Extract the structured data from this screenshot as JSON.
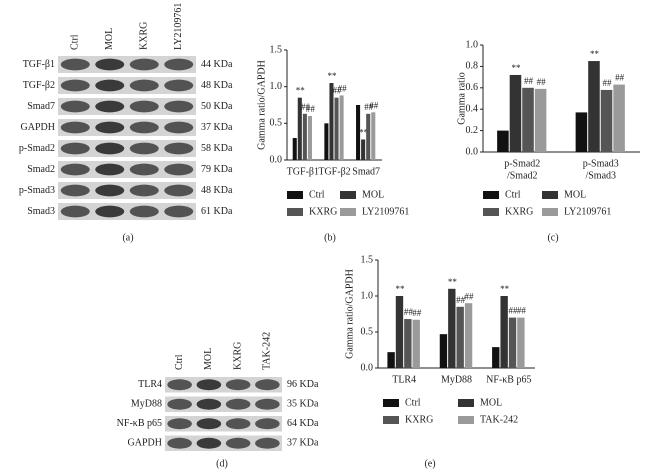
{
  "blots": [
    {
      "lanes": [
        "Ctrl",
        "MOL",
        "KXRG",
        "LY2109761"
      ],
      "rows": [
        {
          "name": "TGF-β1",
          "size": "44 KDa"
        },
        {
          "name": "TGF-β2",
          "size": "48 KDa"
        },
        {
          "name": "Smad7",
          "size": "50 KDa"
        },
        {
          "name": "GAPDH",
          "size": "37 KDa"
        },
        {
          "name": "p-Smad2",
          "size": "58 KDa"
        },
        {
          "name": "Smad2",
          "size": "79 KDa"
        },
        {
          "name": "p-Smad3",
          "size": "48 KDa"
        },
        {
          "name": "Smad3",
          "size": "61 KDa"
        }
      ],
      "caption": "(a)"
    },
    {
      "lanes": [
        "Ctrl",
        "MOL",
        "KXRG",
        "TAK-242"
      ],
      "rows": [
        {
          "name": "TLR4",
          "size": "96 KDa"
        },
        {
          "name": "MyD88",
          "size": "35 KDa"
        },
        {
          "name": "NF-κB p65",
          "size": "64 KDa"
        },
        {
          "name": "GAPDH",
          "size": "37 KDa"
        }
      ],
      "caption": "(d)"
    }
  ],
  "chart_data": [
    {
      "type": "bar",
      "y_label": "Gamma ratio/GAPDH",
      "caption": "(b)",
      "categories": [
        [
          "TGF-β1"
        ],
        [
          "TGF-β2"
        ],
        [
          "Smad7"
        ]
      ],
      "ylim": [
        0,
        1.5
      ],
      "yticks": [
        {
          "value": 0,
          "label": "0.0"
        },
        {
          "value": 0.5,
          "label": "0.5"
        },
        {
          "value": 1,
          "label": "1.0"
        },
        {
          "value": 1.5,
          "label": "1.5"
        }
      ],
      "series": [
        {
          "name": "Ctrl",
          "color": "#111111",
          "values": [
            0.3,
            0.5,
            0.75
          ],
          "annotations": [
            null,
            null,
            null
          ]
        },
        {
          "name": "MOL",
          "color": "#333333",
          "values": [
            0.85,
            1.05,
            0.28
          ],
          "annotations": [
            "**",
            "**",
            "**"
          ]
        },
        {
          "name": "KXRG",
          "color": "#555555",
          "values": [
            0.63,
            0.85,
            0.63
          ],
          "annotations": [
            "##",
            "##",
            "##"
          ]
        },
        {
          "name": "LY2109761",
          "color": "#9a9a9a",
          "values": [
            0.6,
            0.88,
            0.65
          ],
          "annotations": [
            "##",
            "##",
            "##"
          ]
        }
      ]
    },
    {
      "type": "bar",
      "y_label": "Gamma ratio",
      "caption": "(c)",
      "categories": [
        [
          "p-Smad2",
          "/Smad2"
        ],
        [
          "p-Smad3",
          "/Smad3"
        ]
      ],
      "ylim": [
        0,
        1
      ],
      "yticks": [
        {
          "value": 0,
          "label": "0.0"
        },
        {
          "value": 0.2,
          "label": "0.2"
        },
        {
          "value": 0.4,
          "label": "0.4"
        },
        {
          "value": 0.6,
          "label": "0.6"
        },
        {
          "value": 0.8,
          "label": "0.8"
        },
        {
          "value": 1,
          "label": "1.0"
        }
      ],
      "series": [
        {
          "name": "Ctrl",
          "color": "#111111",
          "values": [
            0.2,
            0.37
          ],
          "annotations": [
            null,
            null
          ]
        },
        {
          "name": "MOL",
          "color": "#333333",
          "values": [
            0.72,
            0.85
          ],
          "annotations": [
            "**",
            "**"
          ]
        },
        {
          "name": "KXRG",
          "color": "#555555",
          "values": [
            0.6,
            0.58
          ],
          "annotations": [
            "##",
            "##"
          ]
        },
        {
          "name": "LY2109761",
          "color": "#9a9a9a",
          "values": [
            0.59,
            0.63
          ],
          "annotations": [
            "##",
            "##"
          ]
        }
      ]
    },
    {
      "type": "bar",
      "y_label": "Gamma ratio/GAPDH",
      "caption": "(e)",
      "categories": [
        [
          "TLR4"
        ],
        [
          "MyD88"
        ],
        [
          "NF-κB p65"
        ]
      ],
      "ylim": [
        0,
        1.5
      ],
      "yticks": [
        {
          "value": 0,
          "label": "0.0"
        },
        {
          "value": 0.5,
          "label": "0.5"
        },
        {
          "value": 1,
          "label": "1.0"
        },
        {
          "value": 1.5,
          "label": "1.5"
        }
      ],
      "series": [
        {
          "name": "Ctrl",
          "color": "#111111",
          "values": [
            0.22,
            0.47,
            0.29
          ],
          "annotations": [
            null,
            null,
            null
          ]
        },
        {
          "name": "MOL",
          "color": "#333333",
          "values": [
            1.0,
            1.1,
            1.0
          ],
          "annotations": [
            "**",
            "**",
            "**"
          ]
        },
        {
          "name": "KXRG",
          "color": "#555555",
          "values": [
            0.68,
            0.85,
            0.7
          ],
          "annotations": [
            "##",
            "##",
            "##"
          ]
        },
        {
          "name": "TAK-242",
          "color": "#9a9a9a",
          "values": [
            0.67,
            0.9,
            0.7
          ],
          "annotations": [
            "##",
            "##",
            "##"
          ]
        }
      ]
    }
  ]
}
